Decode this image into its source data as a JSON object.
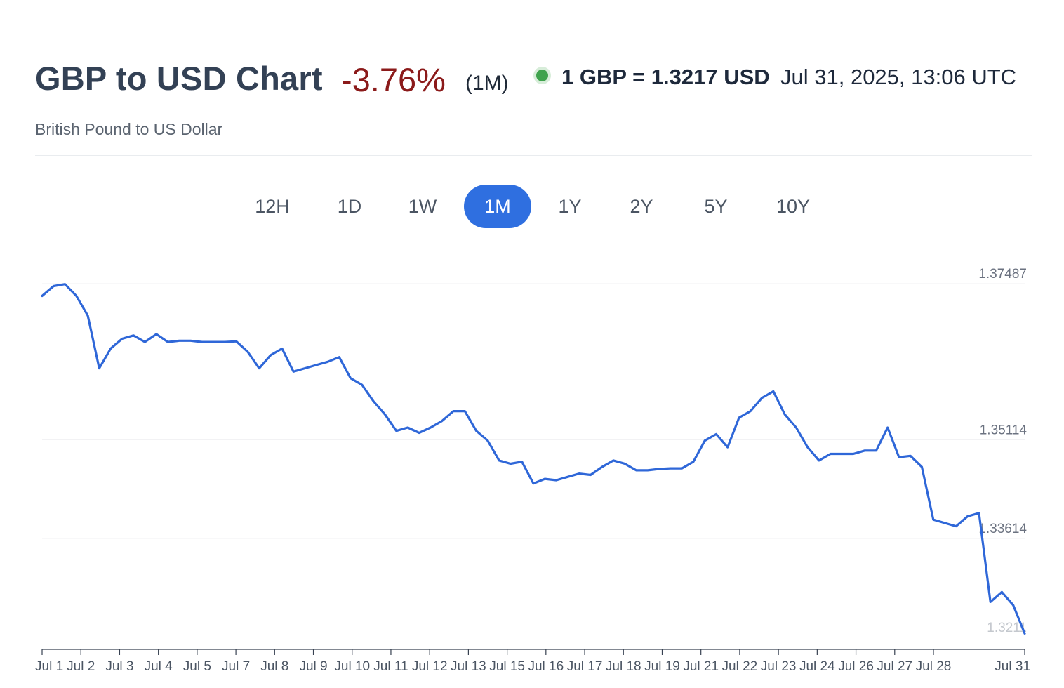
{
  "header": {
    "title": "GBP to USD Chart",
    "change": "-3.76%",
    "period": "(1M)",
    "rate": "1 GBP = 1.3217 USD",
    "timestamp": "Jul 31, 2025, 13:06 UTC",
    "subtitle": "British Pound to US Dollar"
  },
  "range_tabs": [
    {
      "label": "12H",
      "active": false
    },
    {
      "label": "1D",
      "active": false
    },
    {
      "label": "1W",
      "active": false
    },
    {
      "label": "1M",
      "active": true
    },
    {
      "label": "1Y",
      "active": false
    },
    {
      "label": "2Y",
      "active": false
    },
    {
      "label": "5Y",
      "active": false
    },
    {
      "label": "10Y",
      "active": false
    }
  ],
  "colors": {
    "line": "#2f67d8",
    "accent": "#2f6fe0",
    "change_negative": "#8b1a1a",
    "live_dot": "#3fa34d"
  },
  "chart_data": {
    "type": "line",
    "title": "",
    "xlabel": "",
    "ylabel": "",
    "ylim": [
      1.3211,
      1.37487
    ],
    "y_ticks": [
      "1.37487",
      "1.35114",
      "1.33614",
      "1.3211"
    ],
    "x_tick_labels": [
      "Jul 1",
      "Jul 2",
      "Jul 3",
      "Jul 4",
      "Jul 5",
      "Jul 7",
      "Jul 8",
      "Jul 9",
      "Jul 10",
      "Jul 11",
      "Jul 12",
      "Jul 13",
      "Jul 15",
      "Jul 16",
      "Jul 17",
      "Jul 18",
      "Jul 19",
      "Jul 21",
      "Jul 22",
      "Jul 23",
      "Jul 24",
      "Jul 26",
      "Jul 27",
      "Jul 28",
      "Jul 31"
    ],
    "grid": true,
    "series": [
      {
        "x": [
          "Jul 1",
          "Jul 1 04:00",
          "Jul 1 10:00",
          "Jul 1 16:00",
          "Jul 2 00:00",
          "Jul 2 04:00",
          "Jul 2 08:00",
          "Jul 2 14:00",
          "Jul 2 20:00",
          "Jul 3",
          "Jul 3 08:00",
          "Jul 3 16:00",
          "Jul 4",
          "Jul 4 08:00",
          "Jul 4 16:00",
          "Jul 5",
          "Jul 5 12:00",
          "Jul 6",
          "Jul 7",
          "Jul 7 06:00",
          "Jul 7 10:00",
          "Jul 7 16:00",
          "Jul 8",
          "Jul 8 08:00",
          "Jul 8 16:00",
          "Jul 9",
          "Jul 9 08:00",
          "Jul 9 16:00",
          "Jul 10",
          "Jul 10 08:00",
          "Jul 10 16:00",
          "Jul 11",
          "Jul 11 06:00",
          "Jul 11 12:00",
          "Jul 11 18:00",
          "Jul 12",
          "Jul 12 12:00",
          "Jul 13",
          "Jul 13 08:00",
          "Jul 13 16:00",
          "Jul 14",
          "Jul 14 12:00",
          "Jul 15",
          "Jul 15 08:00",
          "Jul 15 16:00",
          "Jul 16",
          "Jul 16 06:00",
          "Jul 16 12:00",
          "Jul 16 18:00",
          "Jul 17",
          "Jul 17 08:00",
          "Jul 17 16:00",
          "Jul 18",
          "Jul 18 12:00",
          "Jul 19",
          "Jul 20",
          "Jul 20 12:00",
          "Jul 21",
          "Jul 21 08:00",
          "Jul 21 16:00",
          "Jul 22",
          "Jul 22 08:00",
          "Jul 22 16:00",
          "Jul 23",
          "Jul 23 08:00",
          "Jul 23 16:00",
          "Jul 24",
          "Jul 24 08:00",
          "Jul 24 16:00",
          "Jul 25",
          "Jul 25 12:00",
          "Jul 26",
          "Jul 26 12:00",
          "Jul 27",
          "Jul 27 06:00",
          "Jul 27 12:00",
          "Jul 27 18:00",
          "Jul 28",
          "Jul 28 08:00",
          "Jul 28 16:00",
          "Jul 29",
          "Jul 29 12:00",
          "Jul 30",
          "Jul 30 08:00",
          "Jul 30 16:00",
          "Jul 31",
          "Jul 31 13:06"
        ],
        "y": [
          1.373,
          1.3745,
          1.3748,
          1.373,
          1.37,
          1.362,
          1.365,
          1.3665,
          1.367,
          1.366,
          1.3672,
          1.366,
          1.3662,
          1.3662,
          1.366,
          1.366,
          1.366,
          1.3661,
          1.3645,
          1.362,
          1.364,
          1.365,
          1.3615,
          1.362,
          1.3625,
          1.363,
          1.3637,
          1.3605,
          1.3595,
          1.357,
          1.355,
          1.3525,
          1.353,
          1.3522,
          1.353,
          1.354,
          1.3555,
          1.3555,
          1.3525,
          1.351,
          1.348,
          1.3475,
          1.3478,
          1.3445,
          1.3452,
          1.345,
          1.3455,
          1.346,
          1.3458,
          1.347,
          1.348,
          1.3475,
          1.3465,
          1.3465,
          1.3467,
          1.3468,
          1.3468,
          1.3478,
          1.351,
          1.352,
          1.35,
          1.3545,
          1.3555,
          1.3575,
          1.3585,
          1.355,
          1.353,
          1.35,
          1.348,
          1.349,
          1.349,
          1.349,
          1.3495,
          1.3495,
          1.353,
          1.3485,
          1.3487,
          1.347,
          1.339,
          1.3385,
          1.338,
          1.3395,
          1.34,
          1.3265,
          1.328,
          1.326,
          1.3217
        ]
      }
    ]
  }
}
